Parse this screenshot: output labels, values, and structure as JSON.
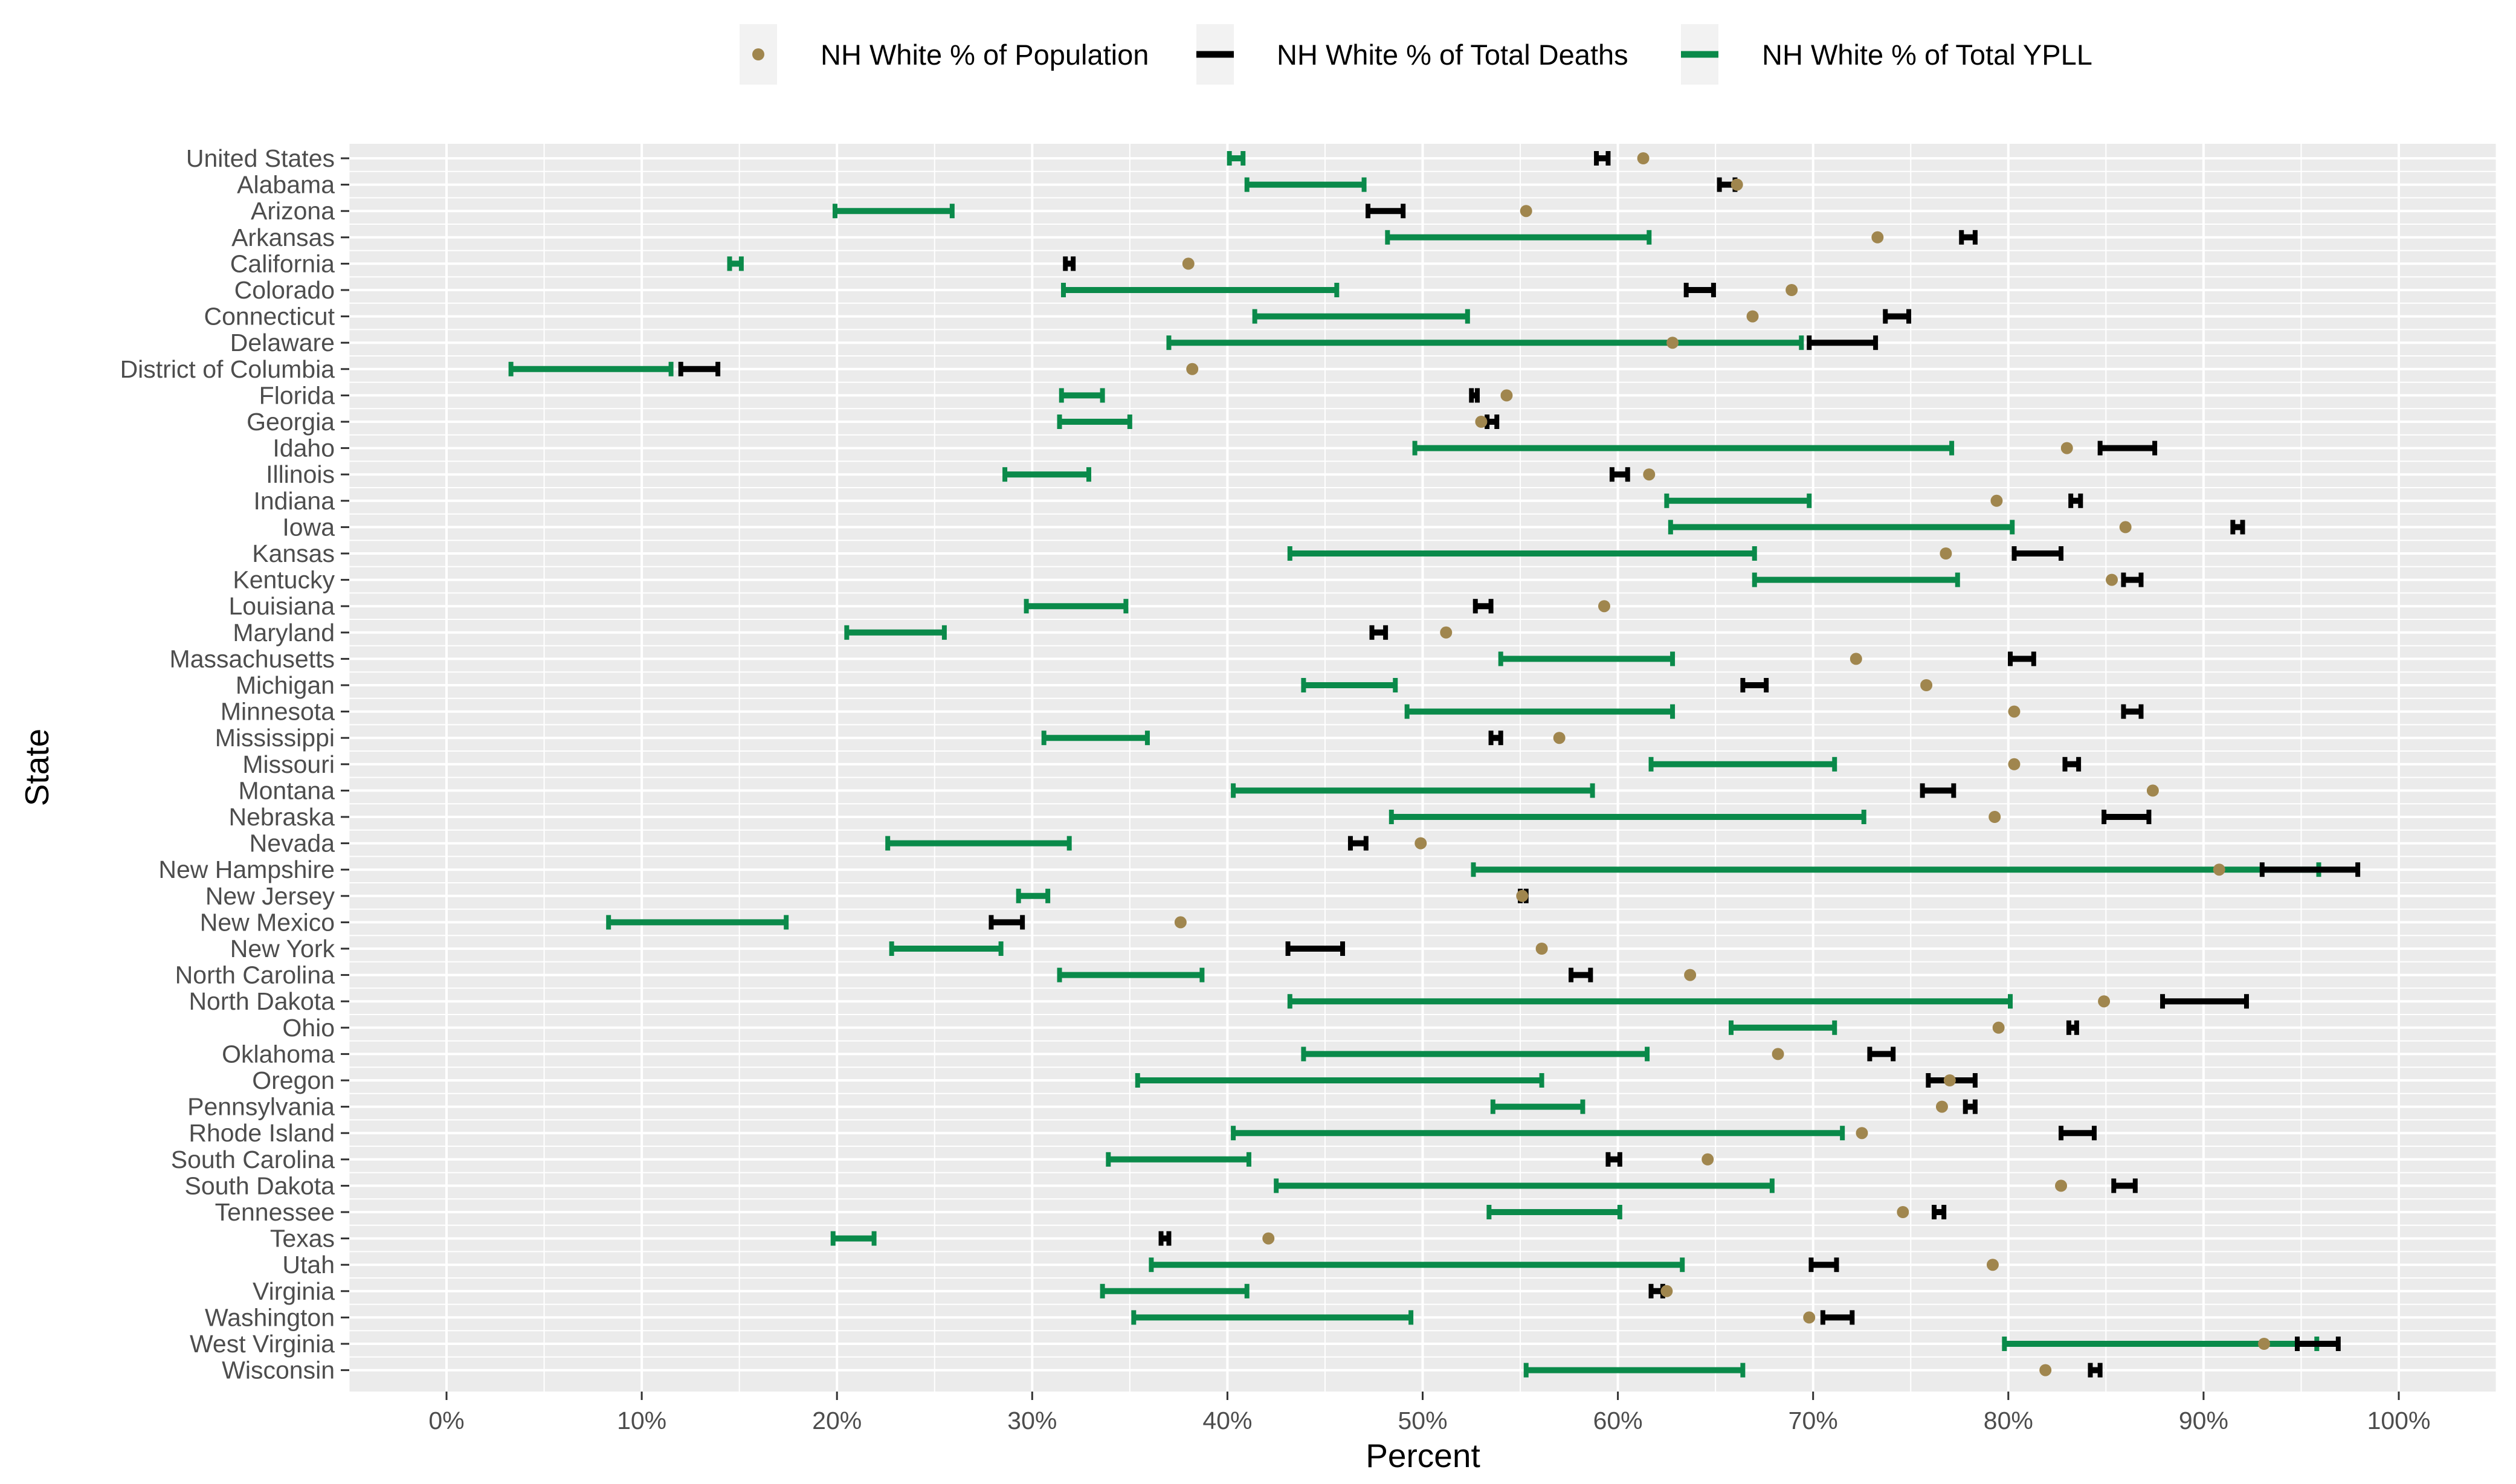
{
  "chart_data": {
    "type": "dumbbell",
    "title": "",
    "xlabel": "Percent",
    "ylabel": "State",
    "xlim": [
      -5,
      105
    ],
    "xticks": [
      0,
      10,
      20,
      30,
      40,
      50,
      60,
      70,
      80,
      90,
      100
    ],
    "xtick_labels": [
      "0%",
      "10%",
      "20%",
      "30%",
      "40%",
      "50%",
      "60%",
      "70%",
      "80%",
      "90%",
      "100%"
    ],
    "legend": {
      "position": "top",
      "entries": [
        "NH White % of Population",
        "NH White % of Total Deaths",
        "NH White % of Total YPLL"
      ]
    },
    "colors": {
      "population": "#a0864e",
      "deaths": "#000000",
      "ypll": "#0a8a4a",
      "panel": "#ebebeb",
      "grid": "#ffffff"
    },
    "states": [
      "United States",
      "Alabama",
      "Arizona",
      "Arkansas",
      "California",
      "Colorado",
      "Connecticut",
      "Delaware",
      "District of Columbia",
      "Florida",
      "Georgia",
      "Idaho",
      "Illinois",
      "Indiana",
      "Iowa",
      "Kansas",
      "Kentucky",
      "Louisiana",
      "Maryland",
      "Massachusetts",
      "Michigan",
      "Minnesota",
      "Mississippi",
      "Missouri",
      "Montana",
      "Nebraska",
      "Nevada",
      "New Hampshire",
      "New Jersey",
      "New Mexico",
      "New York",
      "North Carolina",
      "North Dakota",
      "Ohio",
      "Oklahoma",
      "Oregon",
      "Pennsylvania",
      "Rhode Island",
      "South Carolina",
      "South Dakota",
      "Tennessee",
      "Texas",
      "Utah",
      "Virginia",
      "Washington",
      "West Virginia",
      "Wisconsin"
    ],
    "series": [
      {
        "name": "NH White % of Population",
        "kind": "point",
        "values": [
          61.3,
          66.1,
          55.3,
          73.3,
          38.0,
          68.9,
          66.9,
          62.8,
          38.2,
          54.3,
          53.0,
          83.0,
          61.6,
          79.4,
          86.0,
          76.8,
          85.3,
          59.3,
          51.2,
          72.2,
          75.8,
          80.3,
          57.0,
          80.3,
          87.4,
          79.3,
          49.9,
          90.8,
          55.1,
          37.6,
          56.1,
          63.7,
          84.9,
          79.5,
          68.2,
          77.0,
          76.6,
          72.5,
          64.6,
          82.7,
          74.6,
          42.1,
          79.2,
          62.5,
          69.8,
          93.1,
          81.9
        ]
      },
      {
        "name": "NH White % of Total Deaths",
        "kind": "interval",
        "low": [
          58.9,
          65.2,
          47.2,
          77.6,
          31.7,
          63.5,
          73.7,
          69.8,
          12.0,
          52.5,
          53.3,
          84.7,
          59.7,
          83.2,
          91.5,
          80.3,
          85.9,
          52.7,
          47.4,
          80.1,
          66.4,
          85.9,
          53.5,
          82.9,
          75.6,
          84.9,
          46.3,
          93.0,
          55.0,
          27.9,
          43.1,
          57.6,
          87.9,
          83.1,
          72.9,
          75.9,
          77.8,
          82.7,
          59.5,
          85.4,
          76.2,
          36.6,
          69.9,
          61.7,
          70.5,
          94.8,
          84.2
        ],
        "high": [
          59.5,
          66.0,
          49.0,
          78.3,
          32.1,
          64.9,
          74.9,
          73.2,
          13.9,
          52.8,
          53.8,
          87.5,
          60.5,
          83.7,
          92.0,
          82.7,
          86.8,
          53.5,
          48.1,
          81.3,
          67.6,
          86.8,
          54.0,
          83.6,
          77.2,
          87.2,
          47.1,
          97.9,
          55.3,
          29.5,
          45.9,
          58.6,
          92.2,
          83.5,
          74.1,
          78.3,
          78.3,
          84.4,
          60.1,
          86.5,
          76.7,
          37.0,
          71.2,
          62.3,
          72.0,
          96.9,
          84.7
        ]
      },
      {
        "name": "NH White % of Total YPLL",
        "kind": "interval",
        "low": [
          40.1,
          41.0,
          19.9,
          48.2,
          14.5,
          31.6,
          41.4,
          37.0,
          3.3,
          31.5,
          31.4,
          49.6,
          28.6,
          62.5,
          62.7,
          43.2,
          67.0,
          29.7,
          20.5,
          54.0,
          43.9,
          49.2,
          30.6,
          61.7,
          40.3,
          48.4,
          22.6,
          52.6,
          29.3,
          8.3,
          22.8,
          31.4,
          43.2,
          65.8,
          43.9,
          35.4,
          53.6,
          40.3,
          33.9,
          42.5,
          53.4,
          19.8,
          36.1,
          33.6,
          35.2,
          79.8,
          55.3
        ],
        "high": [
          40.8,
          47.0,
          25.9,
          61.6,
          15.1,
          45.6,
          52.3,
          69.4,
          11.5,
          33.6,
          35.0,
          77.1,
          32.9,
          69.8,
          80.2,
          67.0,
          77.4,
          34.8,
          25.5,
          62.8,
          48.6,
          62.8,
          35.9,
          71.1,
          58.7,
          72.6,
          31.9,
          95.9,
          30.8,
          17.4,
          28.4,
          38.7,
          80.1,
          71.1,
          61.5,
          56.1,
          58.2,
          71.5,
          41.1,
          67.9,
          60.1,
          21.9,
          63.3,
          41.0,
          49.4,
          95.8,
          66.4
        ]
      }
    ]
  }
}
